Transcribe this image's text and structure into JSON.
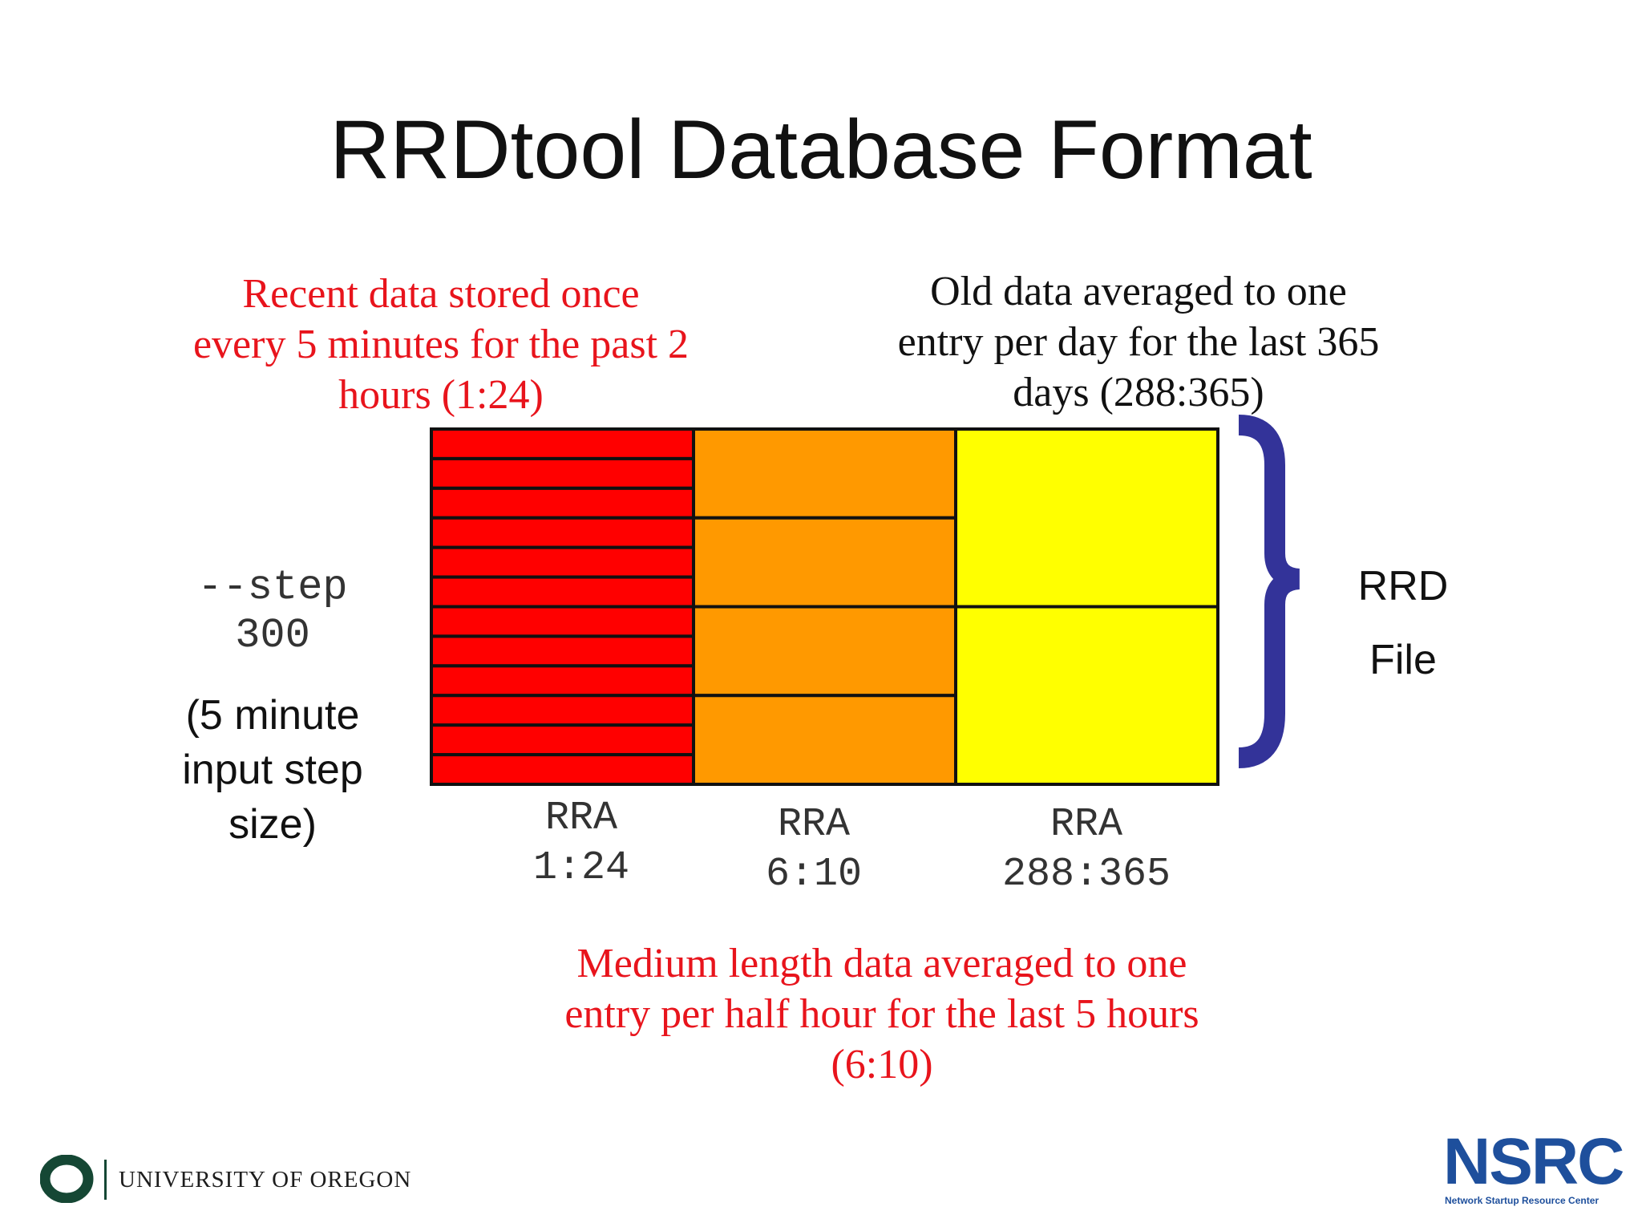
{
  "title": "RRDtool Database Format",
  "notes": {
    "recent": [
      "Recent data stored once",
      "every 5 minutes for the past 2",
      "hours (1:24)"
    ],
    "old": [
      "Old data averaged to one",
      "entry per day for the last 365",
      "days (288:365)"
    ],
    "medium": [
      "Medium length data averaged to one",
      "entry per half hour for the last 5 hours",
      "(6:10)"
    ]
  },
  "step": {
    "code": [
      "--step",
      "300"
    ],
    "desc": [
      "(5 minute",
      "input step",
      "size)"
    ]
  },
  "rra_blocks": [
    {
      "label": [
        "RRA",
        "1:24"
      ],
      "rows": 12,
      "color": "#ff0000"
    },
    {
      "label": [
        "RRA",
        "6:10"
      ],
      "rows": 4,
      "color": "#ff9900"
    },
    {
      "label": [
        "RRA",
        "288:365"
      ],
      "rows": 2,
      "color": "#ffff00"
    }
  ],
  "rrd_file": [
    "RRD",
    "File"
  ],
  "colors": {
    "brace": "#333399",
    "red_text": "#e8141c",
    "uo_green": "#154734",
    "nsrc_blue": "#1e4f9c"
  },
  "footer": {
    "university": "UNIVERSITY OF OREGON",
    "nsrc": "NSRC",
    "nsrc_sub": "Network Startup Resource Center"
  }
}
